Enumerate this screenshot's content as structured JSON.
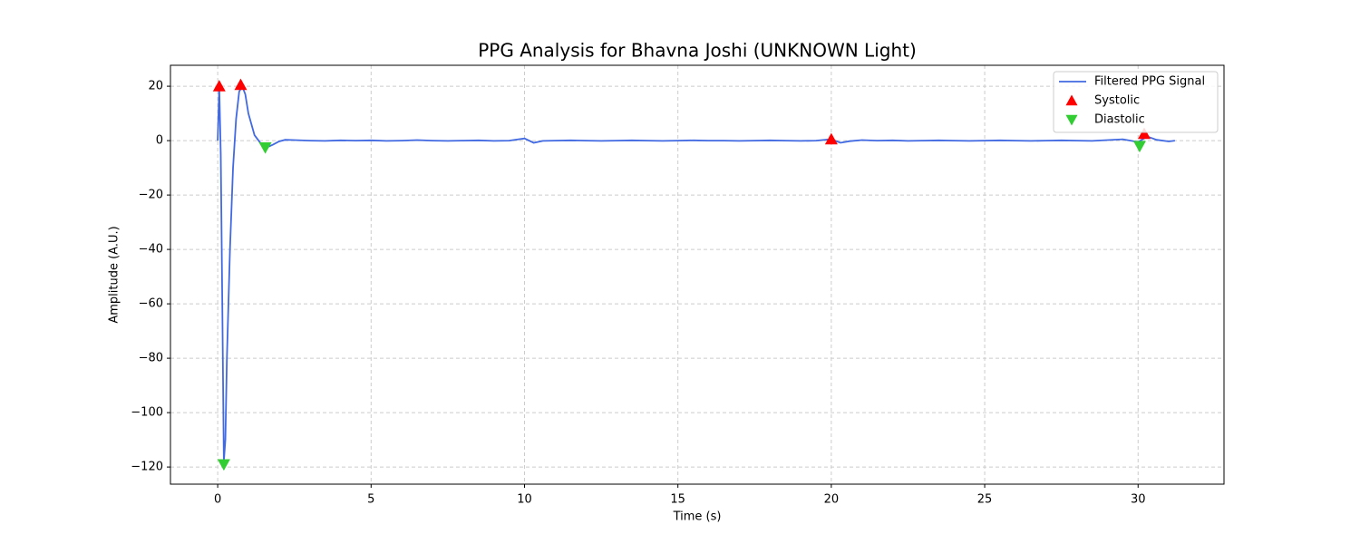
{
  "chart_data": {
    "type": "line",
    "title": "PPG Analysis for Bhavna Joshi (UNKNOWN Light)",
    "xlabel": "Time (s)",
    "ylabel": "Amplitude (A.U.)",
    "xlim": [
      -1.54,
      32.8
    ],
    "ylim": [
      -126.3,
      27.7
    ],
    "xticks": [
      0,
      5,
      10,
      15,
      20,
      25,
      30
    ],
    "yticks": [
      {
        "value": -120,
        "label": "−120"
      },
      {
        "value": -100,
        "label": "−100"
      },
      {
        "value": -80,
        "label": "−80"
      },
      {
        "value": -60,
        "label": "−60"
      },
      {
        "value": -40,
        "label": "−40"
      },
      {
        "value": -20,
        "label": "−20"
      },
      0,
      20
    ],
    "grid": true,
    "legend": "upper right",
    "series": [
      {
        "name": "Filtered PPG Signal",
        "type": "line",
        "color": "#4169e1",
        "x": [
          0,
          0.05,
          0.1,
          0.15,
          0.2,
          0.25,
          0.3,
          0.4,
          0.5,
          0.6,
          0.7,
          0.8,
          0.9,
          1.0,
          1.2,
          1.4,
          1.6,
          1.8,
          2.0,
          2.2,
          2.5,
          3,
          3.5,
          4,
          4.5,
          5,
          5.5,
          6,
          6.5,
          7,
          7.5,
          8,
          8.5,
          9,
          9.5,
          10,
          10.3,
          10.6,
          11,
          11.5,
          12,
          12.5,
          13,
          13.5,
          14,
          14.5,
          15,
          15.5,
          16,
          16.5,
          17,
          17.5,
          18,
          18.5,
          19,
          19.5,
          20,
          20.3,
          20.6,
          21,
          21.5,
          22,
          22.5,
          23,
          23.5,
          24,
          24.5,
          25,
          25.5,
          26,
          26.5,
          27,
          27.5,
          28,
          28.5,
          29,
          29.5,
          30,
          30.3,
          30.6,
          31,
          31.2
        ],
        "values": [
          0,
          20,
          -5,
          -60,
          -118,
          -110,
          -80,
          -40,
          -10,
          8,
          18,
          20,
          17,
          10,
          2,
          -1,
          -2.5,
          -1.5,
          -0.3,
          0.3,
          0.2,
          0,
          -0.1,
          0.1,
          0,
          0.1,
          -0.1,
          0,
          0.2,
          0,
          -0.1,
          0,
          0.1,
          -0.1,
          0,
          0.8,
          -0.8,
          -0.1,
          0,
          0.1,
          0,
          -0.1,
          0,
          0.1,
          0,
          -0.1,
          0,
          0.1,
          0,
          0,
          -0.1,
          0,
          0.1,
          0,
          -0.1,
          0,
          0.5,
          -0.8,
          -0.2,
          0.2,
          0,
          0.1,
          -0.1,
          0,
          0.1,
          0,
          -0.1,
          0,
          0.1,
          0,
          -0.1,
          0,
          0.1,
          0,
          -0.1,
          0.2,
          0.5,
          -0.5,
          1.5,
          0.3,
          -0.3,
          0
        ]
      },
      {
        "name": "Systolic",
        "type": "scatter",
        "marker": "triangle-up",
        "color": "#ff0000",
        "x": [
          0.05,
          0.75,
          20.0,
          30.2
        ],
        "values": [
          20,
          20.5,
          0.5,
          2.5
        ]
      },
      {
        "name": "Diastolic",
        "type": "scatter",
        "marker": "triangle-down",
        "color": "#32cd32",
        "x": [
          0.2,
          1.55,
          30.05
        ],
        "values": [
          -119,
          -2.5,
          -2
        ]
      }
    ]
  }
}
